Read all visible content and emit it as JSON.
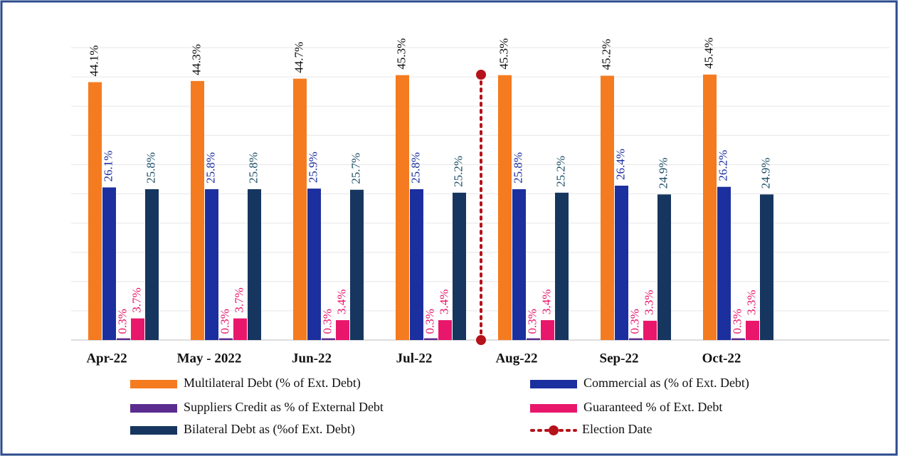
{
  "chart_data": {
    "type": "bar",
    "categories": [
      "Apr-22",
      "May - 2022",
      "Jun-22",
      "Jul-22",
      "Aug-22",
      "Sep-22",
      "Oct-22"
    ],
    "series": [
      {
        "name": "Multilateral Debt (% of Ext. Debt)",
        "color": "#f47b20",
        "label_color": "#111111",
        "values": [
          44.1,
          44.3,
          44.7,
          45.3,
          45.3,
          45.2,
          45.4
        ],
        "value_labels": [
          "44.1%",
          "44.3%",
          "44.7%",
          "45.3%",
          "45.3%",
          "45.2%",
          "45.4%"
        ]
      },
      {
        "name": "Commercial as (% of Ext. Debt)",
        "color": "#1c2f9e",
        "label_color": "#1c2f9e",
        "values": [
          26.1,
          25.8,
          25.9,
          25.8,
          25.8,
          26.4,
          26.2
        ],
        "value_labels": [
          "26.1%",
          "25.8%",
          "25.9%",
          "25.8%",
          "25.8%",
          "26.4%",
          "26.2%"
        ]
      },
      {
        "name": "Suppliers Credit as % of External Debt",
        "color": "#5b2c8f",
        "label_color": "#e8176b",
        "values": [
          0.3,
          0.3,
          0.3,
          0.3,
          0.3,
          0.3,
          0.3
        ],
        "value_labels": [
          "0.3%",
          "0.3%",
          "0.3%",
          "0.3%",
          "0.3%",
          "0.3%",
          "0.3%"
        ]
      },
      {
        "name": "Guaranteed % of Ext. Debt",
        "color": "#e8176b",
        "label_color": "#e8176b",
        "values": [
          3.7,
          3.7,
          3.4,
          3.4,
          3.4,
          3.3,
          3.3
        ],
        "value_labels": [
          "3.7%",
          "3.7%",
          "3.4%",
          "3.4%",
          "3.4%",
          "3.3%",
          "3.3%"
        ]
      },
      {
        "name": "Bilateral Debt as (%of Ext. Debt)",
        "color": "#16365f",
        "label_color": "#1f5068",
        "values": [
          25.8,
          25.8,
          25.7,
          25.2,
          25.2,
          24.9,
          24.9
        ],
        "value_labels": [
          "25.8%",
          "25.8%",
          "25.7%",
          "25.2%",
          "25.2%",
          "24.9%",
          "24.9%"
        ]
      }
    ],
    "election_marker": {
      "label": "Election Date",
      "color": "#b5121b"
    },
    "ylim": [
      0,
      50
    ],
    "yticks": [
      0,
      5,
      10,
      15,
      20,
      25,
      30,
      35,
      40,
      45,
      50
    ],
    "grid": true,
    "legend": "bottom"
  }
}
